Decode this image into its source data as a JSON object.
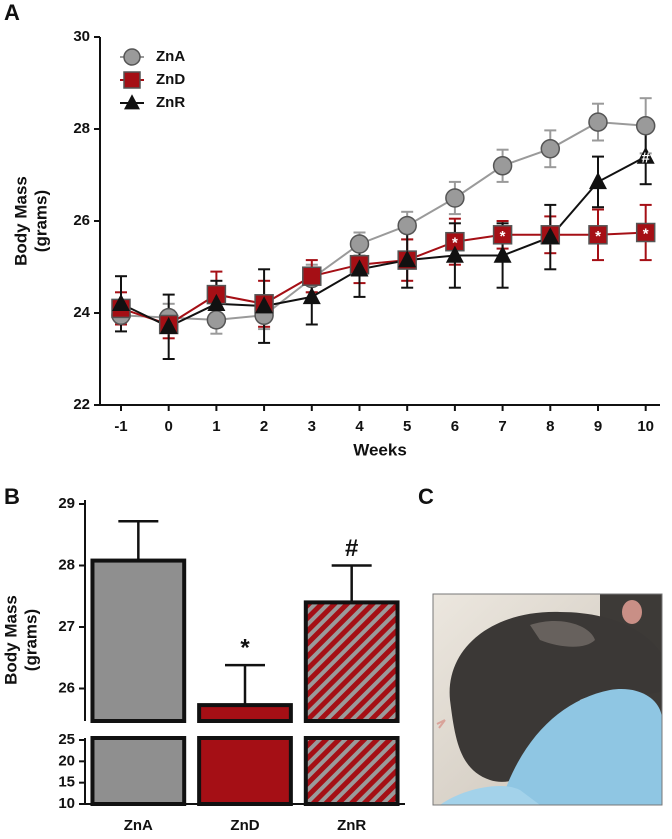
{
  "chart_data": [
    {
      "type": "line",
      "panel_label": "A",
      "x_label": "Weeks",
      "y_label": [
        "Body Mass",
        "(grams)"
      ],
      "x": [
        -1,
        0,
        1,
        2,
        3,
        4,
        5,
        6,
        7,
        8,
        9,
        10
      ],
      "xlim": [
        -1.44,
        10.3
      ],
      "xticks": [
        -1,
        0,
        1,
        2,
        3,
        4,
        5,
        6,
        7,
        8,
        9,
        10
      ],
      "ylim": [
        22,
        30
      ],
      "yticks": [
        22,
        24,
        26,
        28,
        30
      ],
      "legend": "top-left",
      "series": [
        {
          "name": "ZnA",
          "color": "#9a9a9a",
          "marker": "circle",
          "values": [
            23.95,
            23.9,
            23.85,
            23.95,
            24.75,
            25.5,
            25.9,
            26.5,
            27.2,
            27.57,
            28.15,
            28.07
          ],
          "errors": [
            0.2,
            0.3,
            0.3,
            0.3,
            0.3,
            0.25,
            0.3,
            0.35,
            0.35,
            0.4,
            0.4,
            0.6
          ]
        },
        {
          "name": "ZnD",
          "color": "#a50f15",
          "marker": "square",
          "values": [
            24.1,
            23.75,
            24.4,
            24.2,
            24.8,
            25.05,
            25.15,
            25.55,
            25.7,
            25.7,
            25.7,
            25.75
          ],
          "errors": [
            0.35,
            0.3,
            0.5,
            0.5,
            0.35,
            0.4,
            0.45,
            0.5,
            0.3,
            0.4,
            0.55,
            0.6
          ],
          "point_labels": [
            null,
            null,
            null,
            null,
            null,
            null,
            null,
            "*",
            "*",
            "*",
            "*",
            "*"
          ]
        },
        {
          "name": "ZnR",
          "color": "#111111",
          "marker": "triangle",
          "values": [
            24.2,
            23.7,
            24.2,
            24.15,
            24.35,
            24.95,
            25.15,
            25.25,
            25.25,
            25.65,
            26.85,
            27.4
          ],
          "errors": [
            0.6,
            0.7,
            0.5,
            0.8,
            0.6,
            0.6,
            0.6,
            0.7,
            0.7,
            0.7,
            0.55,
            0.6
          ],
          "point_labels": [
            null,
            null,
            null,
            null,
            null,
            null,
            null,
            null,
            null,
            null,
            null,
            "#"
          ]
        }
      ]
    },
    {
      "type": "bar",
      "panel_label": "B",
      "y_label": [
        "Body Mass",
        "(grams)"
      ],
      "categories": [
        "ZnA",
        "ZnD",
        "ZnR"
      ],
      "values": [
        28.08,
        25.73,
        27.4
      ],
      "errors": [
        0.64,
        0.65,
        0.6
      ],
      "bar_labels": [
        null,
        "*",
        "#"
      ],
      "colors": [
        "#8f8f8f",
        "#a50f15",
        "#a50f15"
      ],
      "hatch": [
        false,
        false,
        true
      ],
      "ylim": [
        25.5,
        29
      ],
      "yticks": [
        26,
        27,
        28,
        29
      ],
      "ylim_lower": [
        10,
        25
      ],
      "yticks_lower": [
        10,
        15,
        20,
        25
      ]
    },
    {
      "type": "image",
      "panel_label": "C"
    }
  ]
}
